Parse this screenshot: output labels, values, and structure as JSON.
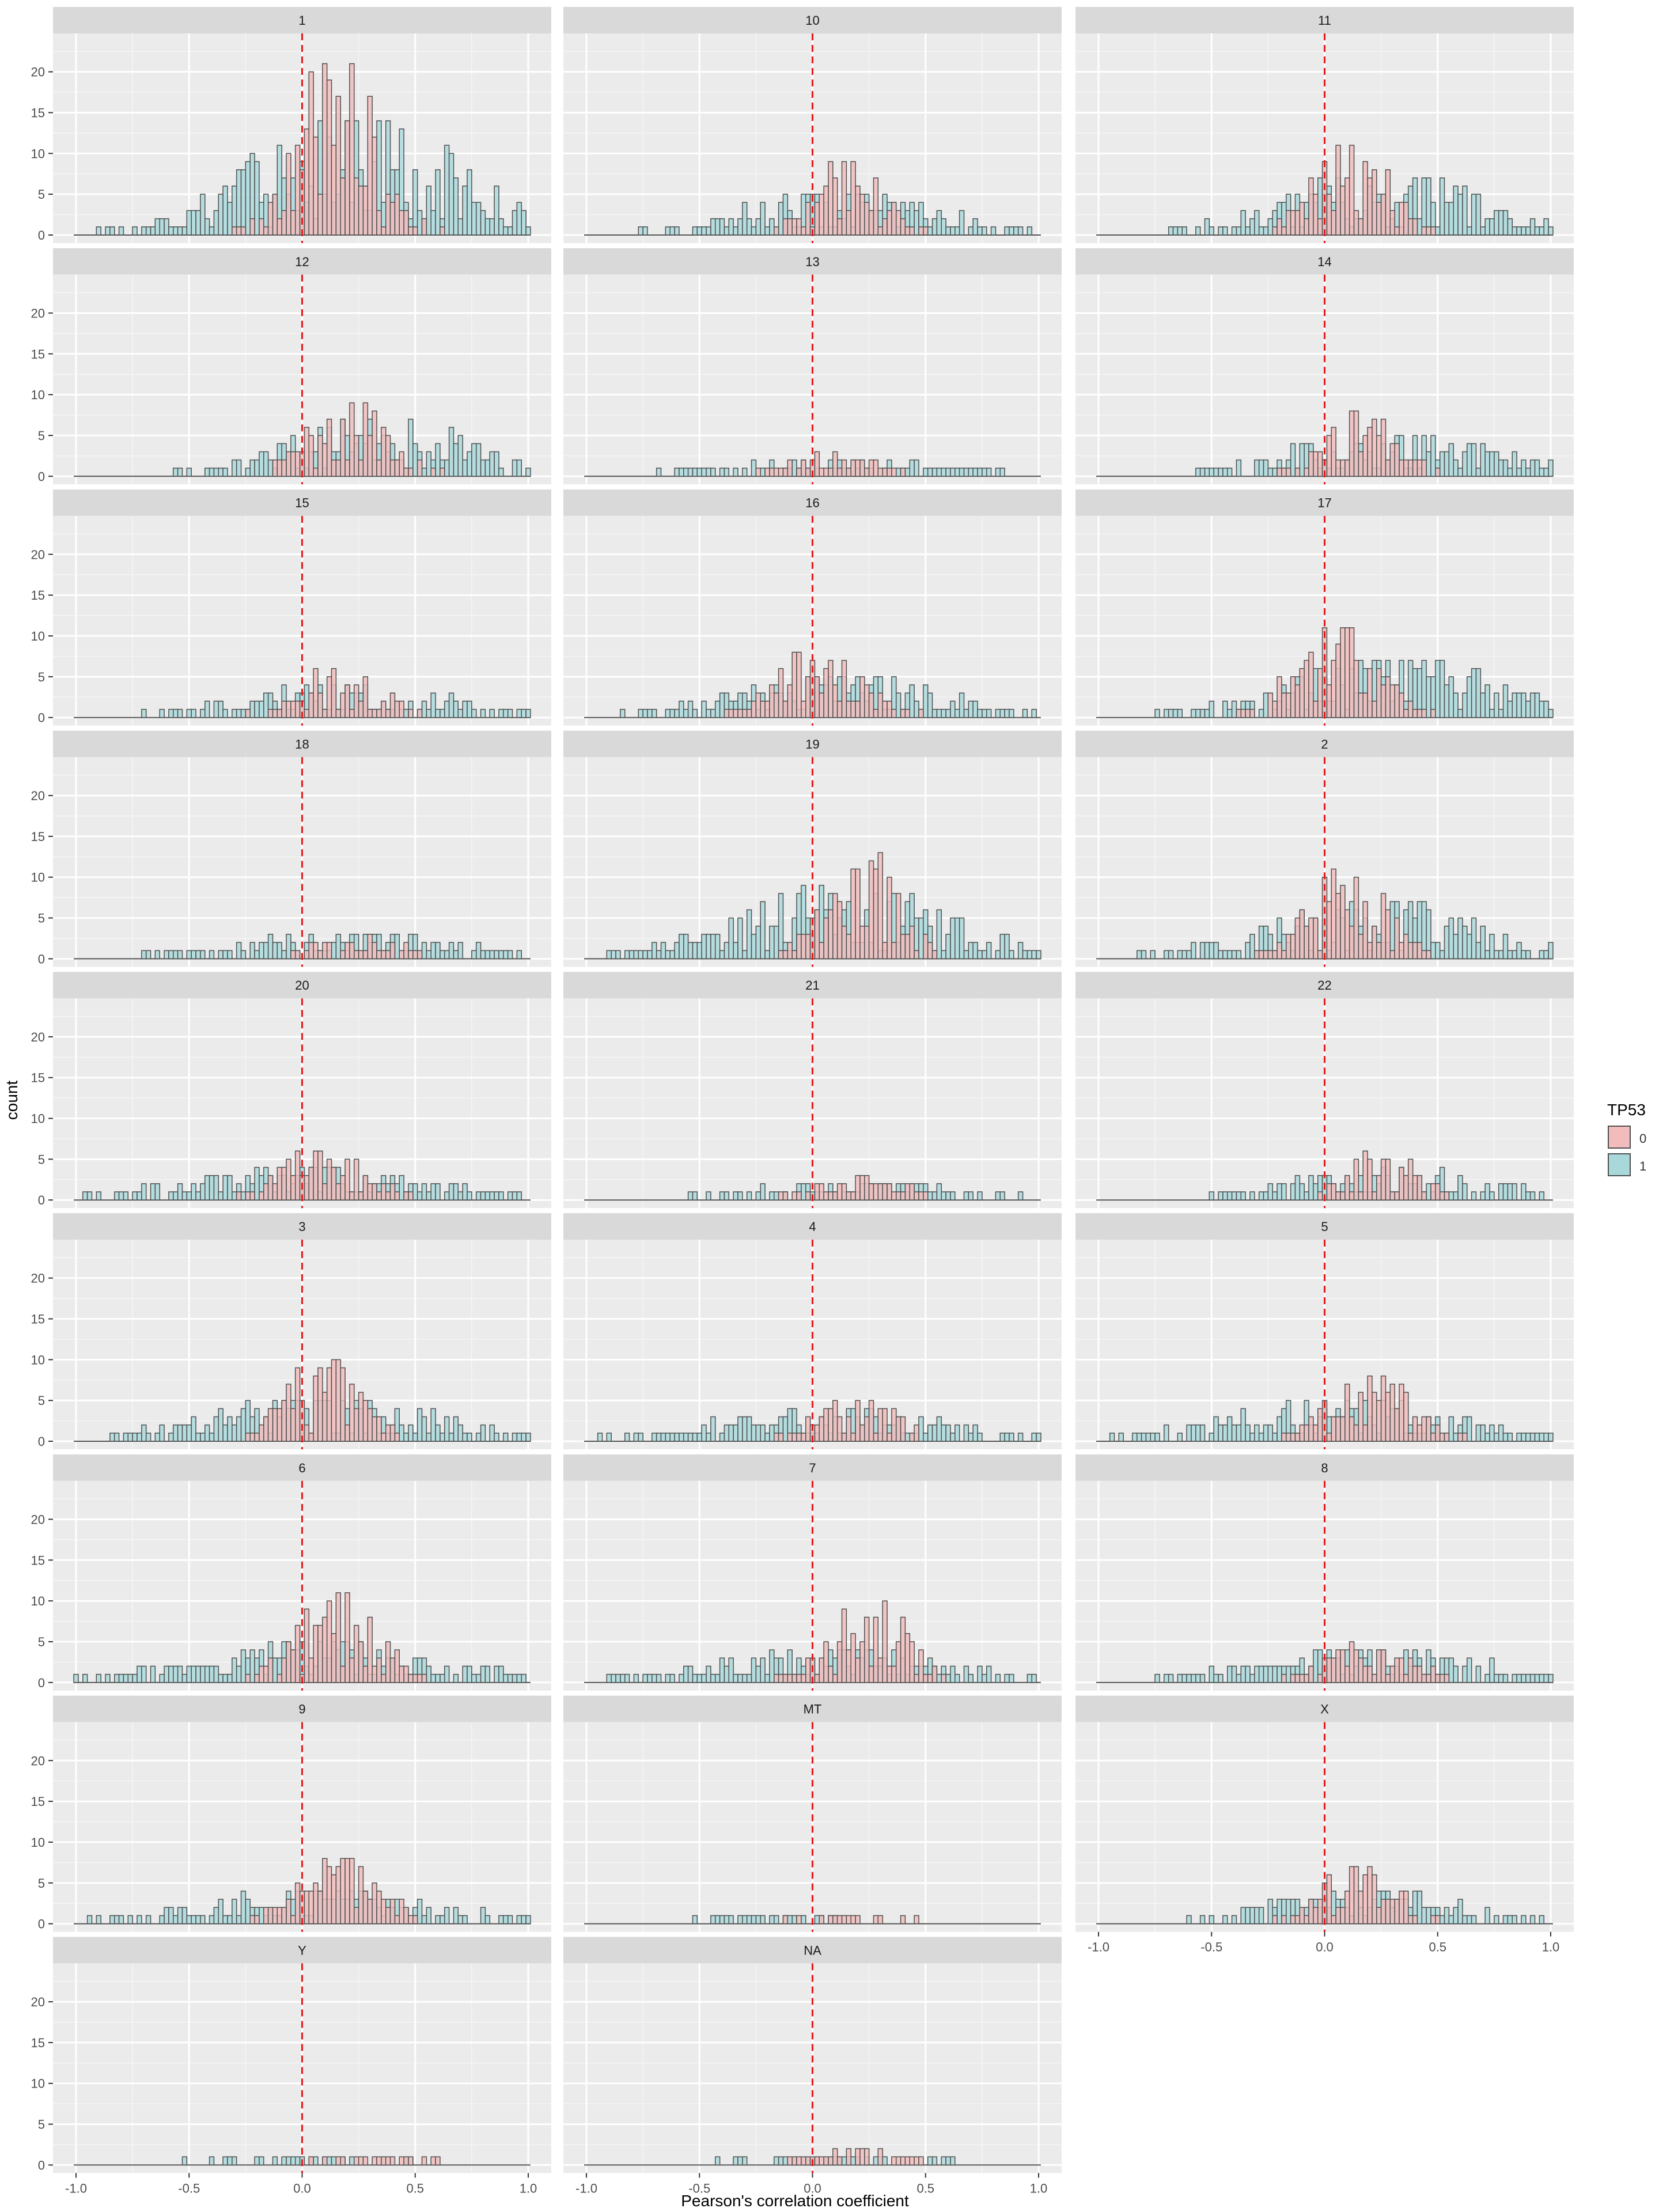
{
  "chart_data": {
    "type": "bar",
    "subtype": "faceted-overlaid-histogram",
    "xlabel": "Pearson's correlation coefficient",
    "ylabel": "count",
    "xlim": [
      -1.0,
      1.0
    ],
    "ylim": [
      0,
      24
    ],
    "x_ticks": [
      -1.0,
      -0.5,
      0.0,
      0.5,
      1.0
    ],
    "x_tick_labels": [
      "-1.0",
      "-0.5",
      "0.0",
      "0.5",
      "1.0"
    ],
    "y_ticks": [
      0,
      5,
      10,
      15,
      20
    ],
    "y_tick_labels": [
      "0",
      "5",
      "10",
      "15",
      "20"
    ],
    "bin_width": 0.02,
    "reference_line": {
      "x": 0.0,
      "style": "dashed",
      "color": "#e41a1c"
    },
    "legend": {
      "title": "TP53",
      "position": "right",
      "entries": [
        {
          "label": "0",
          "fill": "#f3bcbc",
          "stroke": "#4f4f4f"
        },
        {
          "label": "1",
          "fill": "#a8d8da",
          "stroke": "#4f4f4f"
        }
      ]
    },
    "panels": [
      {
        "label": "1",
        "series": {
          "0": {
            "center": 0.15,
            "sd": 0.17,
            "peak": 22
          },
          "1": {
            "center": 0.25,
            "sd": 0.45,
            "peak": 14
          }
        }
      },
      {
        "label": "10",
        "series": {
          "0": {
            "center": 0.15,
            "sd": 0.15,
            "peak": 9
          },
          "1": {
            "center": 0.15,
            "sd": 0.45,
            "peak": 5
          }
        }
      },
      {
        "label": "11",
        "series": {
          "0": {
            "center": 0.12,
            "sd": 0.16,
            "peak": 11
          },
          "1": {
            "center": 0.25,
            "sd": 0.45,
            "peak": 7
          }
        }
      },
      {
        "label": "12",
        "series": {
          "0": {
            "center": 0.2,
            "sd": 0.18,
            "peak": 9
          },
          "1": {
            "center": 0.35,
            "sd": 0.4,
            "peak": 7
          }
        }
      },
      {
        "label": "13",
        "series": {
          "0": {
            "center": 0.1,
            "sd": 0.18,
            "peak": 3
          },
          "1": {
            "center": 0.1,
            "sd": 0.5,
            "peak": 2
          }
        }
      },
      {
        "label": "14",
        "series": {
          "0": {
            "center": 0.15,
            "sd": 0.16,
            "peak": 8
          },
          "1": {
            "center": 0.3,
            "sd": 0.45,
            "peak": 5
          }
        }
      },
      {
        "label": "15",
        "series": {
          "0": {
            "center": 0.15,
            "sd": 0.18,
            "peak": 6
          },
          "1": {
            "center": 0.2,
            "sd": 0.45,
            "peak": 4
          }
        }
      },
      {
        "label": "16",
        "series": {
          "0": {
            "center": 0.05,
            "sd": 0.18,
            "peak": 9
          },
          "1": {
            "center": 0.1,
            "sd": 0.45,
            "peak": 5
          }
        }
      },
      {
        "label": "17",
        "series": {
          "0": {
            "center": 0.05,
            "sd": 0.18,
            "peak": 11
          },
          "1": {
            "center": 0.3,
            "sd": 0.45,
            "peak": 7
          }
        }
      },
      {
        "label": "18",
        "series": {
          "0": {
            "center": 0.25,
            "sd": 0.18,
            "peak": 3
          },
          "1": {
            "center": 0.2,
            "sd": 0.5,
            "peak": 3
          }
        }
      },
      {
        "label": "19",
        "series": {
          "0": {
            "center": 0.2,
            "sd": 0.16,
            "peak": 13
          },
          "1": {
            "center": 0.1,
            "sd": 0.45,
            "peak": 9
          }
        }
      },
      {
        "label": "2",
        "series": {
          "0": {
            "center": 0.1,
            "sd": 0.17,
            "peak": 11
          },
          "1": {
            "center": 0.2,
            "sd": 0.45,
            "peak": 7
          }
        }
      },
      {
        "label": "20",
        "series": {
          "0": {
            "center": 0.1,
            "sd": 0.18,
            "peak": 6
          },
          "1": {
            "center": 0.0,
            "sd": 0.5,
            "peak": 4
          }
        }
      },
      {
        "label": "21",
        "series": {
          "0": {
            "center": 0.2,
            "sd": 0.2,
            "peak": 3
          },
          "1": {
            "center": 0.2,
            "sd": 0.45,
            "peak": 2
          }
        }
      },
      {
        "label": "22",
        "series": {
          "0": {
            "center": 0.25,
            "sd": 0.15,
            "peak": 6
          },
          "1": {
            "center": 0.3,
            "sd": 0.4,
            "peak": 4
          }
        }
      },
      {
        "label": "3",
        "series": {
          "0": {
            "center": 0.1,
            "sd": 0.17,
            "peak": 10
          },
          "1": {
            "center": 0.1,
            "sd": 0.5,
            "peak": 5
          }
        }
      },
      {
        "label": "4",
        "series": {
          "0": {
            "center": 0.2,
            "sd": 0.18,
            "peak": 5
          },
          "1": {
            "center": 0.1,
            "sd": 0.5,
            "peak": 4
          }
        }
      },
      {
        "label": "5",
        "series": {
          "0": {
            "center": 0.2,
            "sd": 0.18,
            "peak": 8
          },
          "1": {
            "center": 0.1,
            "sd": 0.5,
            "peak": 5
          }
        }
      },
      {
        "label": "6",
        "series": {
          "0": {
            "center": 0.15,
            "sd": 0.17,
            "peak": 11
          },
          "1": {
            "center": 0.1,
            "sd": 0.5,
            "peak": 5
          }
        }
      },
      {
        "label": "7",
        "series": {
          "0": {
            "center": 0.25,
            "sd": 0.17,
            "peak": 10
          },
          "1": {
            "center": 0.1,
            "sd": 0.5,
            "peak": 4
          }
        }
      },
      {
        "label": "8",
        "series": {
          "0": {
            "center": 0.2,
            "sd": 0.18,
            "peak": 5
          },
          "1": {
            "center": 0.2,
            "sd": 0.5,
            "peak": 4
          }
        }
      },
      {
        "label": "9",
        "series": {
          "0": {
            "center": 0.15,
            "sd": 0.18,
            "peak": 8
          },
          "1": {
            "center": 0.1,
            "sd": 0.5,
            "peak": 4
          }
        }
      },
      {
        "label": "MT",
        "series": {
          "0": {
            "center": 0.2,
            "sd": 0.25,
            "peak": 1
          },
          "1": {
            "center": -0.2,
            "sd": 0.35,
            "peak": 1
          }
        }
      },
      {
        "label": "X",
        "series": {
          "0": {
            "center": 0.15,
            "sd": 0.16,
            "peak": 7
          },
          "1": {
            "center": 0.2,
            "sd": 0.4,
            "peak": 4
          }
        }
      },
      {
        "label": "Y",
        "series": {
          "0": {
            "center": 0.3,
            "sd": 0.3,
            "peak": 1
          },
          "1": {
            "center": 0.0,
            "sd": 0.5,
            "peak": 1
          }
        }
      },
      {
        "label": "NA",
        "series": {
          "0": {
            "center": 0.2,
            "sd": 0.2,
            "peak": 2
          },
          "1": {
            "center": 0.1,
            "sd": 0.45,
            "peak": 1
          }
        }
      }
    ]
  }
}
